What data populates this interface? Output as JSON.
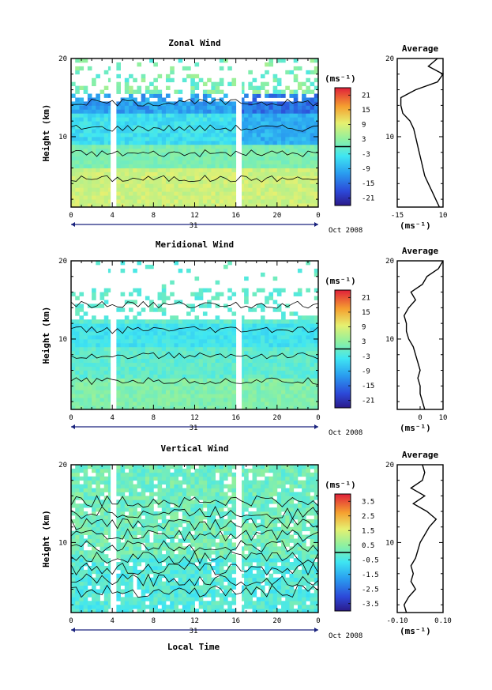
{
  "figure": {
    "xlabel": "Local Time",
    "date_label": "Oct 2008",
    "day_label": "31",
    "avg_title": "Average",
    "unit_label": "(ms⁻¹)",
    "ylabel": "Height (km)"
  },
  "chart_data": [
    {
      "type": "heatmap",
      "title": "Zonal Wind",
      "ylabel": "Height (km)",
      "xlabel": "",
      "x_ticks": [
        "0",
        "4",
        "8",
        "12",
        "16",
        "20",
        "0"
      ],
      "y_ticks": [
        "10",
        "20"
      ],
      "ylim": [
        1,
        20
      ],
      "xlim": [
        0,
        24
      ],
      "colorbar": {
        "label": "(ms⁻¹)",
        "ticks": [
          "21",
          "15",
          "9",
          "3",
          "-3",
          "-9",
          "-15",
          "-21"
        ],
        "range": [
          -24,
          24
        ]
      },
      "grid": false,
      "profile": {
        "title": "Average",
        "xlabel": "(ms⁻¹)",
        "x_ticks": [
          "-15",
          "10"
        ],
        "xlim": [
          -15,
          10
        ],
        "y_ticks": [
          "10",
          "20"
        ],
        "heights": [
          1,
          2,
          3,
          4,
          5,
          6,
          7,
          8,
          9,
          10,
          11,
          12,
          13,
          14,
          15,
          16,
          17,
          18,
          19,
          20
        ],
        "values": [
          8,
          6,
          4,
          2,
          0,
          -1,
          -2,
          -3,
          -4,
          -5,
          -6,
          -8,
          -12,
          -13,
          -13,
          -5,
          7,
          10,
          2,
          7
        ]
      }
    },
    {
      "type": "heatmap",
      "title": "Meridional Wind",
      "ylabel": "Height (km)",
      "xlabel": "",
      "x_ticks": [
        "0",
        "4",
        "8",
        "12",
        "16",
        "20",
        "0"
      ],
      "y_ticks": [
        "10",
        "20"
      ],
      "ylim": [
        1,
        20
      ],
      "xlim": [
        0,
        24
      ],
      "colorbar": {
        "label": "(ms⁻¹)",
        "ticks": [
          "21",
          "15",
          "9",
          "3",
          "-3",
          "-9",
          "-15",
          "-21"
        ],
        "range": [
          -24,
          24
        ]
      },
      "grid": false,
      "profile": {
        "title": "Average",
        "xlabel": "(ms⁻¹)",
        "x_ticks": [
          "0",
          "10"
        ],
        "xlim": [
          -10,
          10
        ],
        "y_ticks": [
          "10",
          "20"
        ],
        "heights": [
          1,
          2,
          3,
          4,
          5,
          6,
          7,
          8,
          9,
          10,
          11,
          12,
          13,
          14,
          15,
          16,
          17,
          18,
          19,
          20
        ],
        "values": [
          2,
          1,
          0,
          0,
          -1,
          0,
          -1,
          -2,
          -3,
          -5,
          -6,
          -6,
          -7,
          -5,
          -2,
          -4,
          1,
          3,
          8,
          11
        ]
      }
    },
    {
      "type": "heatmap",
      "title": "Vertical Wind",
      "ylabel": "Height (km)",
      "xlabel": "Local Time",
      "x_ticks": [
        "0",
        "4",
        "8",
        "12",
        "16",
        "20",
        "0"
      ],
      "y_ticks": [
        "10",
        "20"
      ],
      "ylim": [
        1,
        20
      ],
      "xlim": [
        0,
        24
      ],
      "colorbar": {
        "label": "(ms⁻¹)",
        "ticks": [
          "3.5",
          "2.5",
          "1.5",
          "0.5",
          "-0.5",
          "-1.5",
          "-2.5",
          "-3.5"
        ],
        "range": [
          -4,
          4
        ]
      },
      "grid": false,
      "profile": {
        "title": "Average",
        "xlabel": "(ms⁻¹)",
        "x_ticks": [
          "-0.10",
          "0.10"
        ],
        "xlim": [
          -0.1,
          0.1
        ],
        "y_ticks": [
          "10",
          "20"
        ],
        "heights": [
          1,
          2,
          3,
          4,
          5,
          6,
          7,
          8,
          9,
          10,
          11,
          12,
          13,
          14,
          15,
          16,
          17,
          18,
          19,
          20
        ],
        "values": [
          -0.06,
          -0.07,
          -0.05,
          -0.02,
          -0.04,
          -0.03,
          -0.04,
          -0.02,
          -0.01,
          0.0,
          0.02,
          0.04,
          0.07,
          0.03,
          -0.03,
          0.02,
          -0.04,
          0.01,
          0.02,
          0.01
        ]
      }
    }
  ]
}
